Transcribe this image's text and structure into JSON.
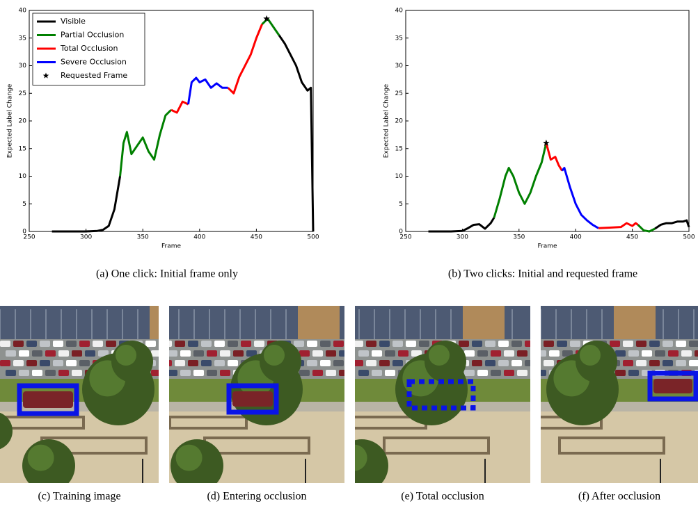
{
  "chart_data": [
    {
      "type": "line",
      "caption": "(a) One click: Initial frame only",
      "xlabel": "Frame",
      "ylabel": "Expected Label Change",
      "xlim": [
        250,
        500
      ],
      "xticks": [
        250,
        300,
        350,
        400,
        450,
        500
      ],
      "ylim": [
        0,
        40
      ],
      "yticks": [
        0,
        5,
        10,
        15,
        20,
        25,
        30,
        35,
        40
      ],
      "legend": "upper left",
      "series": [
        {
          "name": "Visible",
          "color": "#000000",
          "x": [
            270,
            280,
            290,
            300,
            305,
            310,
            315,
            320,
            325,
            330,
            null,
            470,
            475,
            480,
            485,
            490,
            495,
            498,
            500
          ],
          "values": [
            0,
            0,
            0,
            0,
            0.05,
            0.1,
            0.3,
            1,
            4,
            10,
            null,
            35.5,
            34,
            32,
            30,
            27,
            25.5,
            26,
            0
          ]
        },
        {
          "name": "Partial Occlusion",
          "color": "#008000",
          "x": [
            330,
            333,
            336,
            340,
            345,
            350,
            355,
            360,
            365,
            370,
            375,
            null,
            455,
            460,
            465,
            470
          ],
          "values": [
            10,
            16,
            18,
            14,
            15.5,
            17,
            14.5,
            13,
            17.5,
            21,
            22,
            null,
            37.5,
            38.5,
            37,
            35.5
          ]
        },
        {
          "name": "Total Occlusion",
          "color": "#ff0000",
          "x": [
            375,
            380,
            385,
            390,
            null,
            425,
            430,
            435,
            440,
            445,
            450,
            455
          ],
          "values": [
            22,
            21.5,
            23.5,
            23,
            null,
            26,
            25,
            28,
            30,
            32,
            35,
            37.5
          ]
        },
        {
          "name": "Severe Occlusion",
          "color": "#0000ff",
          "x": [
            390,
            393,
            397,
            400,
            405,
            410,
            415,
            420,
            425
          ],
          "values": [
            23,
            27,
            27.8,
            27,
            27.5,
            26,
            26.8,
            26,
            26
          ]
        }
      ],
      "marker": {
        "name": "Requested Frame",
        "color": "#000000",
        "x": 459,
        "value": 38.5
      }
    },
    {
      "type": "line",
      "caption": "(b) Two clicks: Initial and requested frame",
      "xlabel": "Frame",
      "ylabel": "Expected Label Change",
      "xlim": [
        250,
        500
      ],
      "xticks": [
        250,
        300,
        350,
        400,
        450,
        500
      ],
      "ylim": [
        0,
        40
      ],
      "yticks": [
        0,
        5,
        10,
        15,
        20,
        25,
        30,
        35,
        40
      ],
      "series": [
        {
          "color": "#000000",
          "x": [
            270,
            290,
            300,
            305,
            310,
            315,
            320,
            325,
            328,
            null,
            470,
            475,
            480,
            485,
            490,
            495,
            498,
            500
          ],
          "values": [
            0,
            0,
            0.1,
            0.6,
            1.2,
            1.3,
            0.5,
            1.5,
            2.5,
            null,
            0.5,
            1.2,
            1.5,
            1.5,
            1.8,
            1.8,
            2,
            0.8
          ]
        },
        {
          "color": "#008000",
          "x": [
            328,
            333,
            338,
            341,
            345,
            350,
            355,
            360,
            365,
            370,
            374,
            null,
            455,
            460,
            465,
            470
          ],
          "values": [
            2.5,
            6,
            10,
            11.5,
            10,
            7,
            5,
            7,
            10,
            12.5,
            16,
            null,
            1.2,
            0.2,
            0,
            0.5
          ]
        },
        {
          "color": "#ff0000",
          "x": [
            374,
            378,
            382,
            385,
            388,
            null,
            420,
            430,
            440,
            445,
            450,
            453,
            455
          ],
          "values": [
            16,
            13,
            13.5,
            12,
            11,
            null,
            0.6,
            0.7,
            0.8,
            1.5,
            1,
            1.5,
            1.2
          ]
        },
        {
          "color": "#0000ff",
          "x": [
            388,
            390,
            395,
            400,
            405,
            410,
            415,
            420
          ],
          "values": [
            11,
            11.5,
            8,
            5,
            3,
            2,
            1.2,
            0.6
          ]
        }
      ],
      "marker": {
        "color": "#000000",
        "x": 374,
        "value": 16
      }
    }
  ],
  "photos": [
    {
      "caption": "(c) Training image"
    },
    {
      "caption": "(d) Entering occlusion"
    },
    {
      "caption": "(e) Total occlusion"
    },
    {
      "caption": "(f) After occlusion"
    }
  ]
}
